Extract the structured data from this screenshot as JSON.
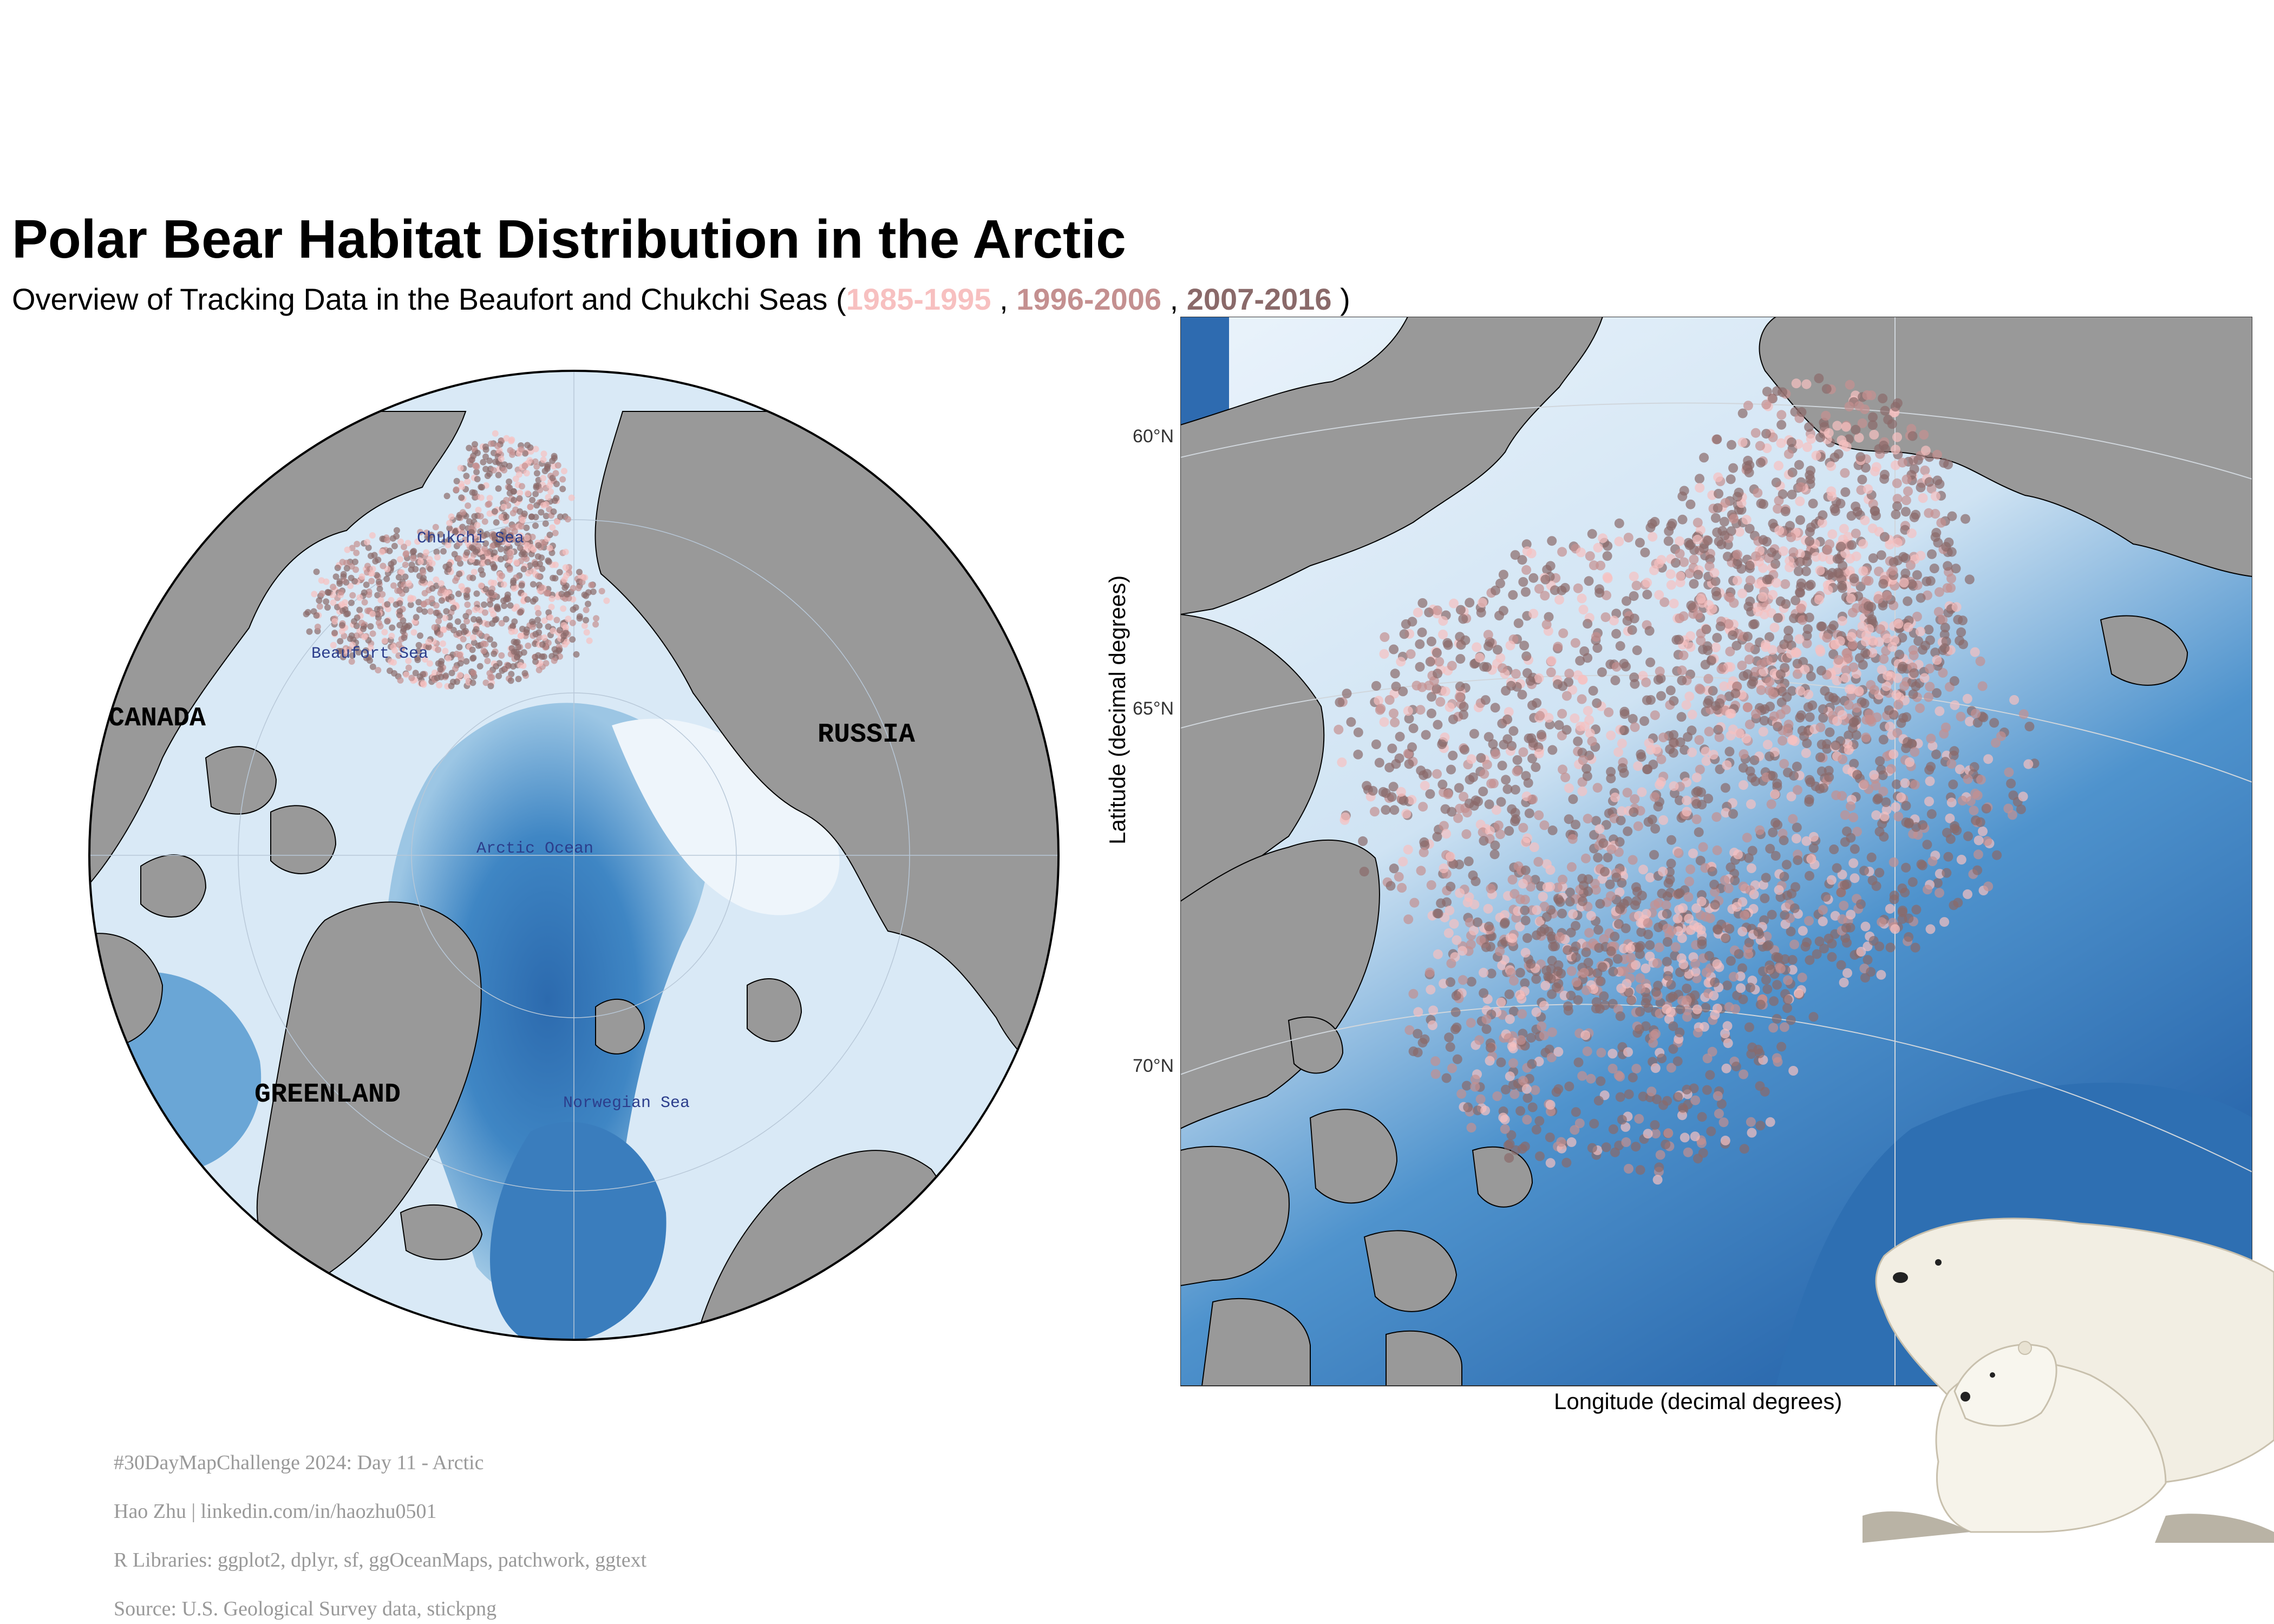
{
  "title": "Polar Bear Habitat Distribution in the Arctic",
  "subtitle": {
    "prefix": "Overview of Tracking Data in the Beaufort and Chukchi Seas (",
    "sep1": " , ",
    "sep2": " , ",
    "suffix": " )",
    "periods": [
      "1985-1995",
      "1996-2006",
      "2007-2016"
    ]
  },
  "colors": {
    "period_1985_1995": "#f7c0c0",
    "period_1996_2006": "#c49090",
    "period_2007_2016": "#8a6a6a",
    "land": "#999999",
    "ocean_deep": "#2b6cb0",
    "ocean_shallow": "#e6f0fa"
  },
  "overview_map": {
    "country_labels": [
      "CANADA",
      "GREENLAND",
      "RUSSIA"
    ],
    "sea_labels": [
      "Chukchi Sea",
      "Beaufort Sea",
      "Arctic Ocean",
      "Norwegian Sea"
    ]
  },
  "detail_map": {
    "y_axis_label": "Latitude (decimal degrees)",
    "x_axis_label": "Longitude (decimal degrees)",
    "lat_ticks": [
      "60°N",
      "65°N",
      "70°N"
    ]
  },
  "caption": [
    "#30DayMapChallenge 2024: Day 11 - Arctic",
    "Hao Zhu | linkedin.com/in/haozhu0501",
    "R Libraries: ggplot2, dplyr, sf, ggOceanMaps, patchwork, ggtext",
    "Source: U.S. Geological Survey data, stickpng"
  ]
}
